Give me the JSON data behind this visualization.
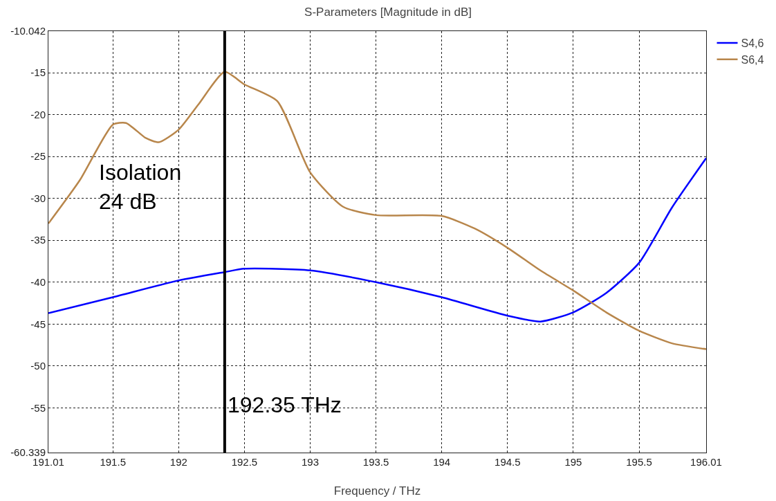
{
  "chart_data": {
    "type": "line",
    "title": "S-Parameters [Magnitude in dB]",
    "xlabel": "Frequency / THz",
    "xlim": [
      191.01,
      196.01
    ],
    "xticks": [
      191.01,
      191.5,
      192,
      192.5,
      193,
      193.5,
      194,
      194.5,
      195,
      195.5,
      196.01
    ],
    "ylim": [
      -60.339,
      -10.042
    ],
    "yticks": [
      -60.339,
      -55,
      -50,
      -45,
      -40,
      -35,
      -30,
      -25,
      -20,
      -15,
      -10.042
    ],
    "grid": true,
    "legend": "top right",
    "line_style": "solid",
    "marker": "none",
    "series": [
      {
        "name": "S4,6",
        "color": "#0000ff",
        "x": [
          191.01,
          191.5,
          192,
          192.35,
          192.5,
          193,
          193.5,
          194,
          194.5,
          194.75,
          195,
          195.25,
          195.5,
          195.75,
          196.01
        ],
        "values": [
          -43.7,
          -41.8,
          -39.8,
          -38.8,
          -38.4,
          -38.6,
          -40,
          -41.8,
          -44,
          -44.7,
          -43.6,
          -41.3,
          -37.7,
          -31.1,
          -25.2
        ]
      },
      {
        "name": "S6,4",
        "color": "#b8864b",
        "x": [
          191.01,
          191.25,
          191.5,
          191.6,
          191.75,
          191.85,
          192,
          192.15,
          192.35,
          192.5,
          192.75,
          193,
          193.25,
          193.5,
          194,
          194.25,
          194.5,
          194.75,
          195,
          195.25,
          195.5,
          195.75,
          196.01
        ],
        "values": [
          -33,
          -27.8,
          -21.2,
          -21,
          -22.8,
          -23.3,
          -21.8,
          -18.8,
          -14.9,
          -16.4,
          -18.4,
          -26.9,
          -31,
          -32,
          -32.1,
          -33.6,
          -35.9,
          -38.6,
          -41,
          -43.6,
          -45.8,
          -47.3,
          -48
        ]
      }
    ],
    "ref_lines": [
      {
        "axis": "x",
        "value": 192.35,
        "label": "192.35 THz",
        "color": "#000000",
        "line_style": "solid"
      }
    ],
    "annotations": [
      "Isolation\n24 dB"
    ]
  }
}
